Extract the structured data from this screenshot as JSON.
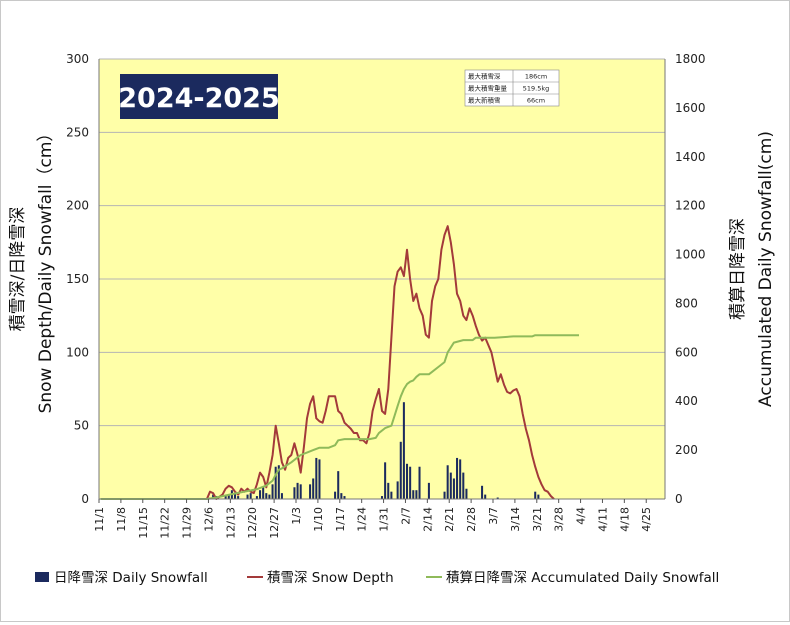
{
  "chart_data": {
    "type": "bar+line",
    "season_label": "2024-2025",
    "y_left_label": "積雪深/日降雪深\nSnow Depth/Daily Snowfall（cm）",
    "y_right_label": "積算日降雪深\nAccumulated Daily Snowfall(cm)",
    "y_left_range": [
      0,
      300
    ],
    "y_left_ticks": [
      "0",
      "50",
      "100",
      "150",
      "200",
      "250",
      "300"
    ],
    "y_right_range": [
      0,
      1800
    ],
    "y_right_ticks": [
      "0",
      "200",
      "400",
      "600",
      "800",
      "1000",
      "1200",
      "1400",
      "1600",
      "1800"
    ],
    "x_start": "11/1",
    "x_end": "4/30",
    "x_tick_labels": [
      "11/1",
      "11/8",
      "11/15",
      "11/22",
      "11/29",
      "12/6",
      "12/13",
      "12/20",
      "12/27",
      "1/3",
      "1/10",
      "1/17",
      "1/24",
      "1/31",
      "2/7",
      "2/14",
      "2/21",
      "2/28",
      "3/7",
      "3/14",
      "3/21",
      "3/28",
      "4/4",
      "4/11",
      "4/18",
      "4/25"
    ],
    "grid": true,
    "info_table": [
      {
        "label": "最大積雪深",
        "value": "186cm"
      },
      {
        "label": "最大積雪重量",
        "value": "519.5kg"
      },
      {
        "label": "最大新積雪",
        "value": "66cm"
      }
    ],
    "legend": [
      {
        "label": "日降雪深 Daily Snowfall",
        "color": "#1b2a5e",
        "kind": "bar"
      },
      {
        "label": "積雪深 Snow Depth",
        "color": "#a33a3a",
        "kind": "line"
      },
      {
        "label": "積算日降雪深 Accumulated Daily Snowfall",
        "color": "#8fba5a",
        "kind": "line"
      }
    ],
    "series": [
      {
        "name": "日降雪深 Daily Snowfall",
        "axis": "left",
        "type": "bar",
        "values": [
          [
            "12/6",
            1
          ],
          [
            "12/7",
            3
          ],
          [
            "12/8",
            2
          ],
          [
            "12/11",
            2
          ],
          [
            "12/12",
            3
          ],
          [
            "12/13",
            6
          ],
          [
            "12/14",
            4
          ],
          [
            "12/15",
            2
          ],
          [
            "12/18",
            3
          ],
          [
            "12/19",
            4
          ],
          [
            "12/21",
            2
          ],
          [
            "12/22",
            6
          ],
          [
            "12/23",
            8
          ],
          [
            "12/24",
            4
          ],
          [
            "12/25",
            3
          ],
          [
            "12/26",
            10
          ],
          [
            "12/27",
            22
          ],
          [
            "12/28",
            23
          ],
          [
            "12/29",
            4
          ],
          [
            "1/2",
            8
          ],
          [
            "1/3",
            11
          ],
          [
            "1/4",
            10
          ],
          [
            "1/7",
            10
          ],
          [
            "1/8",
            14
          ],
          [
            "1/9",
            28
          ],
          [
            "1/10",
            27
          ],
          [
            "1/15",
            5
          ],
          [
            "1/16",
            19
          ],
          [
            "1/17",
            4
          ],
          [
            "1/18",
            2
          ],
          [
            "1/30",
            2
          ],
          [
            "1/31",
            25
          ],
          [
            "2/1",
            11
          ],
          [
            "2/2",
            5
          ],
          [
            "2/4",
            12
          ],
          [
            "2/5",
            39
          ],
          [
            "2/6",
            66
          ],
          [
            "2/7",
            24
          ],
          [
            "2/8",
            22
          ],
          [
            "2/9",
            6
          ],
          [
            "2/10",
            6
          ],
          [
            "2/11",
            22
          ],
          [
            "2/14",
            11
          ],
          [
            "2/19",
            5
          ],
          [
            "2/20",
            23
          ],
          [
            "2/21",
            18
          ],
          [
            "2/22",
            14
          ],
          [
            "2/23",
            28
          ],
          [
            "2/24",
            27
          ],
          [
            "2/25",
            18
          ],
          [
            "2/26",
            7
          ],
          [
            "3/3",
            9
          ],
          [
            "3/4",
            3
          ],
          [
            "3/8",
            1
          ],
          [
            "3/20",
            5
          ],
          [
            "3/21",
            3
          ]
        ]
      },
      {
        "name": "積雪深 Snow Depth",
        "axis": "left",
        "type": "line",
        "color": "#a33a3a",
        "values": [
          [
            "12/5",
            0
          ],
          [
            "12/6",
            5
          ],
          [
            "12/7",
            4
          ],
          [
            "12/8",
            0
          ],
          [
            "12/10",
            3
          ],
          [
            "12/11",
            7
          ],
          [
            "12/12",
            9
          ],
          [
            "12/13",
            8
          ],
          [
            "12/14",
            5
          ],
          [
            "12/15",
            3
          ],
          [
            "12/16",
            7
          ],
          [
            "12/17",
            5
          ],
          [
            "12/18",
            7
          ],
          [
            "12/19",
            5
          ],
          [
            "12/20",
            4
          ],
          [
            "12/21",
            10
          ],
          [
            "12/22",
            18
          ],
          [
            "12/23",
            15
          ],
          [
            "12/24",
            8
          ],
          [
            "12/25",
            18
          ],
          [
            "12/26",
            30
          ],
          [
            "12/27",
            50
          ],
          [
            "12/28",
            38
          ],
          [
            "12/29",
            25
          ],
          [
            "12/30",
            20
          ],
          [
            "12/31",
            28
          ],
          [
            "1/1",
            30
          ],
          [
            "1/2",
            38
          ],
          [
            "1/3",
            30
          ],
          [
            "1/4",
            18
          ],
          [
            "1/5",
            35
          ],
          [
            "1/6",
            55
          ],
          [
            "1/7",
            65
          ],
          [
            "1/8",
            70
          ],
          [
            "1/9",
            55
          ],
          [
            "1/10",
            53
          ],
          [
            "1/11",
            52
          ],
          [
            "1/12",
            60
          ],
          [
            "1/13",
            70
          ],
          [
            "1/14",
            70
          ],
          [
            "1/15",
            70
          ],
          [
            "1/16",
            60
          ],
          [
            "1/17",
            58
          ],
          [
            "1/18",
            52
          ],
          [
            "1/19",
            50
          ],
          [
            "1/20",
            48
          ],
          [
            "1/21",
            45
          ],
          [
            "1/22",
            45
          ],
          [
            "1/23",
            40
          ],
          [
            "1/24",
            40
          ],
          [
            "1/25",
            38
          ],
          [
            "1/26",
            45
          ],
          [
            "1/27",
            60
          ],
          [
            "1/28",
            68
          ],
          [
            "1/29",
            75
          ],
          [
            "1/30",
            60
          ],
          [
            "1/31",
            58
          ],
          [
            "2/1",
            75
          ],
          [
            "2/2",
            110
          ],
          [
            "2/3",
            145
          ],
          [
            "2/4",
            155
          ],
          [
            "2/5",
            158
          ],
          [
            "2/6",
            152
          ],
          [
            "2/7",
            170
          ],
          [
            "2/8",
            150
          ],
          [
            "2/9",
            135
          ],
          [
            "2/10",
            140
          ],
          [
            "2/11",
            130
          ],
          [
            "2/12",
            125
          ],
          [
            "2/13",
            112
          ],
          [
            "2/14",
            110
          ],
          [
            "2/15",
            135
          ],
          [
            "2/16",
            145
          ],
          [
            "2/17",
            150
          ],
          [
            "2/18",
            170
          ],
          [
            "2/19",
            180
          ],
          [
            "2/20",
            186
          ],
          [
            "2/21",
            175
          ],
          [
            "2/22",
            160
          ],
          [
            "2/23",
            140
          ],
          [
            "2/24",
            135
          ],
          [
            "2/25",
            125
          ],
          [
            "2/26",
            122
          ],
          [
            "2/27",
            130
          ],
          [
            "2/28",
            125
          ],
          [
            "3/1",
            118
          ],
          [
            "3/2",
            112
          ],
          [
            "3/3",
            108
          ],
          [
            "3/4",
            110
          ],
          [
            "3/5",
            105
          ],
          [
            "3/6",
            100
          ],
          [
            "3/7",
            90
          ],
          [
            "3/8",
            80
          ],
          [
            "3/9",
            85
          ],
          [
            "3/10",
            78
          ],
          [
            "3/11",
            73
          ],
          [
            "3/12",
            72
          ],
          [
            "3/13",
            74
          ],
          [
            "3/14",
            75
          ],
          [
            "3/15",
            70
          ],
          [
            "3/16",
            58
          ],
          [
            "3/17",
            48
          ],
          [
            "3/18",
            40
          ],
          [
            "3/19",
            30
          ],
          [
            "3/20",
            22
          ],
          [
            "3/21",
            15
          ],
          [
            "3/22",
            10
          ],
          [
            "3/23",
            6
          ],
          [
            "3/24",
            5
          ],
          [
            "3/25",
            2
          ],
          [
            "3/26",
            0
          ]
        ]
      },
      {
        "name": "積算日降雪深 Accumulated Daily Snowfall",
        "axis": "right",
        "type": "line",
        "color": "#8fba5a",
        "values": [
          [
            "11/1",
            0
          ],
          [
            "12/5",
            0
          ],
          [
            "12/8",
            6
          ],
          [
            "12/13",
            20
          ],
          [
            "12/17",
            30
          ],
          [
            "12/21",
            40
          ],
          [
            "12/24",
            55
          ],
          [
            "12/26",
            75
          ],
          [
            "12/27",
            100
          ],
          [
            "12/28",
            120
          ],
          [
            "12/29",
            125
          ],
          [
            "1/1",
            150
          ],
          [
            "1/4",
            180
          ],
          [
            "1/6",
            190
          ],
          [
            "1/8",
            200
          ],
          [
            "1/10",
            210
          ],
          [
            "1/13",
            210
          ],
          [
            "1/15",
            220
          ],
          [
            "1/16",
            240
          ],
          [
            "1/18",
            245
          ],
          [
            "1/26",
            245
          ],
          [
            "1/28",
            250
          ],
          [
            "1/29",
            270
          ],
          [
            "1/31",
            290
          ],
          [
            "2/2",
            300
          ],
          [
            "2/3",
            340
          ],
          [
            "2/4",
            380
          ],
          [
            "2/5",
            420
          ],
          [
            "2/6",
            450
          ],
          [
            "2/7",
            470
          ],
          [
            "2/8",
            480
          ],
          [
            "2/9",
            485
          ],
          [
            "2/10",
            500
          ],
          [
            "2/11",
            510
          ],
          [
            "2/12",
            510
          ],
          [
            "2/14",
            510
          ],
          [
            "2/15",
            520
          ],
          [
            "2/17",
            540
          ],
          [
            "2/19",
            560
          ],
          [
            "2/20",
            600
          ],
          [
            "2/22",
            640
          ],
          [
            "2/25",
            650
          ],
          [
            "2/28",
            650
          ],
          [
            "3/1",
            660
          ],
          [
            "3/7",
            660
          ],
          [
            "3/13",
            665
          ],
          [
            "3/19",
            665
          ],
          [
            "3/20",
            670
          ],
          [
            "3/28",
            670
          ],
          [
            "4/3",
            670
          ]
        ]
      }
    ]
  }
}
